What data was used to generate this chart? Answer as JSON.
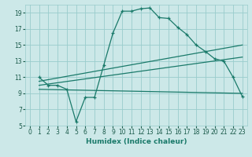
{
  "xlabel": "Humidex (Indice chaleur)",
  "bg_color": "#cce8e8",
  "grid_color": "#99cccc",
  "line_color": "#1a7a6a",
  "xlim": [
    -0.5,
    23.5
  ],
  "ylim": [
    5,
    20
  ],
  "xticks": [
    0,
    1,
    2,
    3,
    4,
    5,
    6,
    7,
    8,
    9,
    10,
    11,
    12,
    13,
    14,
    15,
    16,
    17,
    18,
    19,
    20,
    21,
    22,
    23
  ],
  "yticks": [
    5,
    7,
    9,
    11,
    13,
    15,
    17,
    19
  ],
  "curve1_x": [
    1,
    2,
    3,
    4,
    5,
    6,
    7,
    8,
    9,
    10,
    11,
    12,
    13,
    14,
    15,
    16,
    17,
    18,
    19,
    20,
    21,
    22,
    23
  ],
  "curve1_y": [
    11,
    10,
    10,
    9.5,
    5.5,
    8.5,
    8.5,
    12.5,
    16.5,
    19.2,
    19.2,
    19.5,
    19.6,
    18.4,
    18.3,
    17.2,
    16.3,
    15.0,
    14.2,
    13.3,
    13.0,
    11.0,
    8.6
  ],
  "line1_x": [
    1,
    23
  ],
  "line1_y": [
    10.5,
    15.0
  ],
  "line2_x": [
    1,
    23
  ],
  "line2_y": [
    10.0,
    13.5
  ],
  "line3_x": [
    1,
    23
  ],
  "line3_y": [
    9.5,
    9.0
  ]
}
